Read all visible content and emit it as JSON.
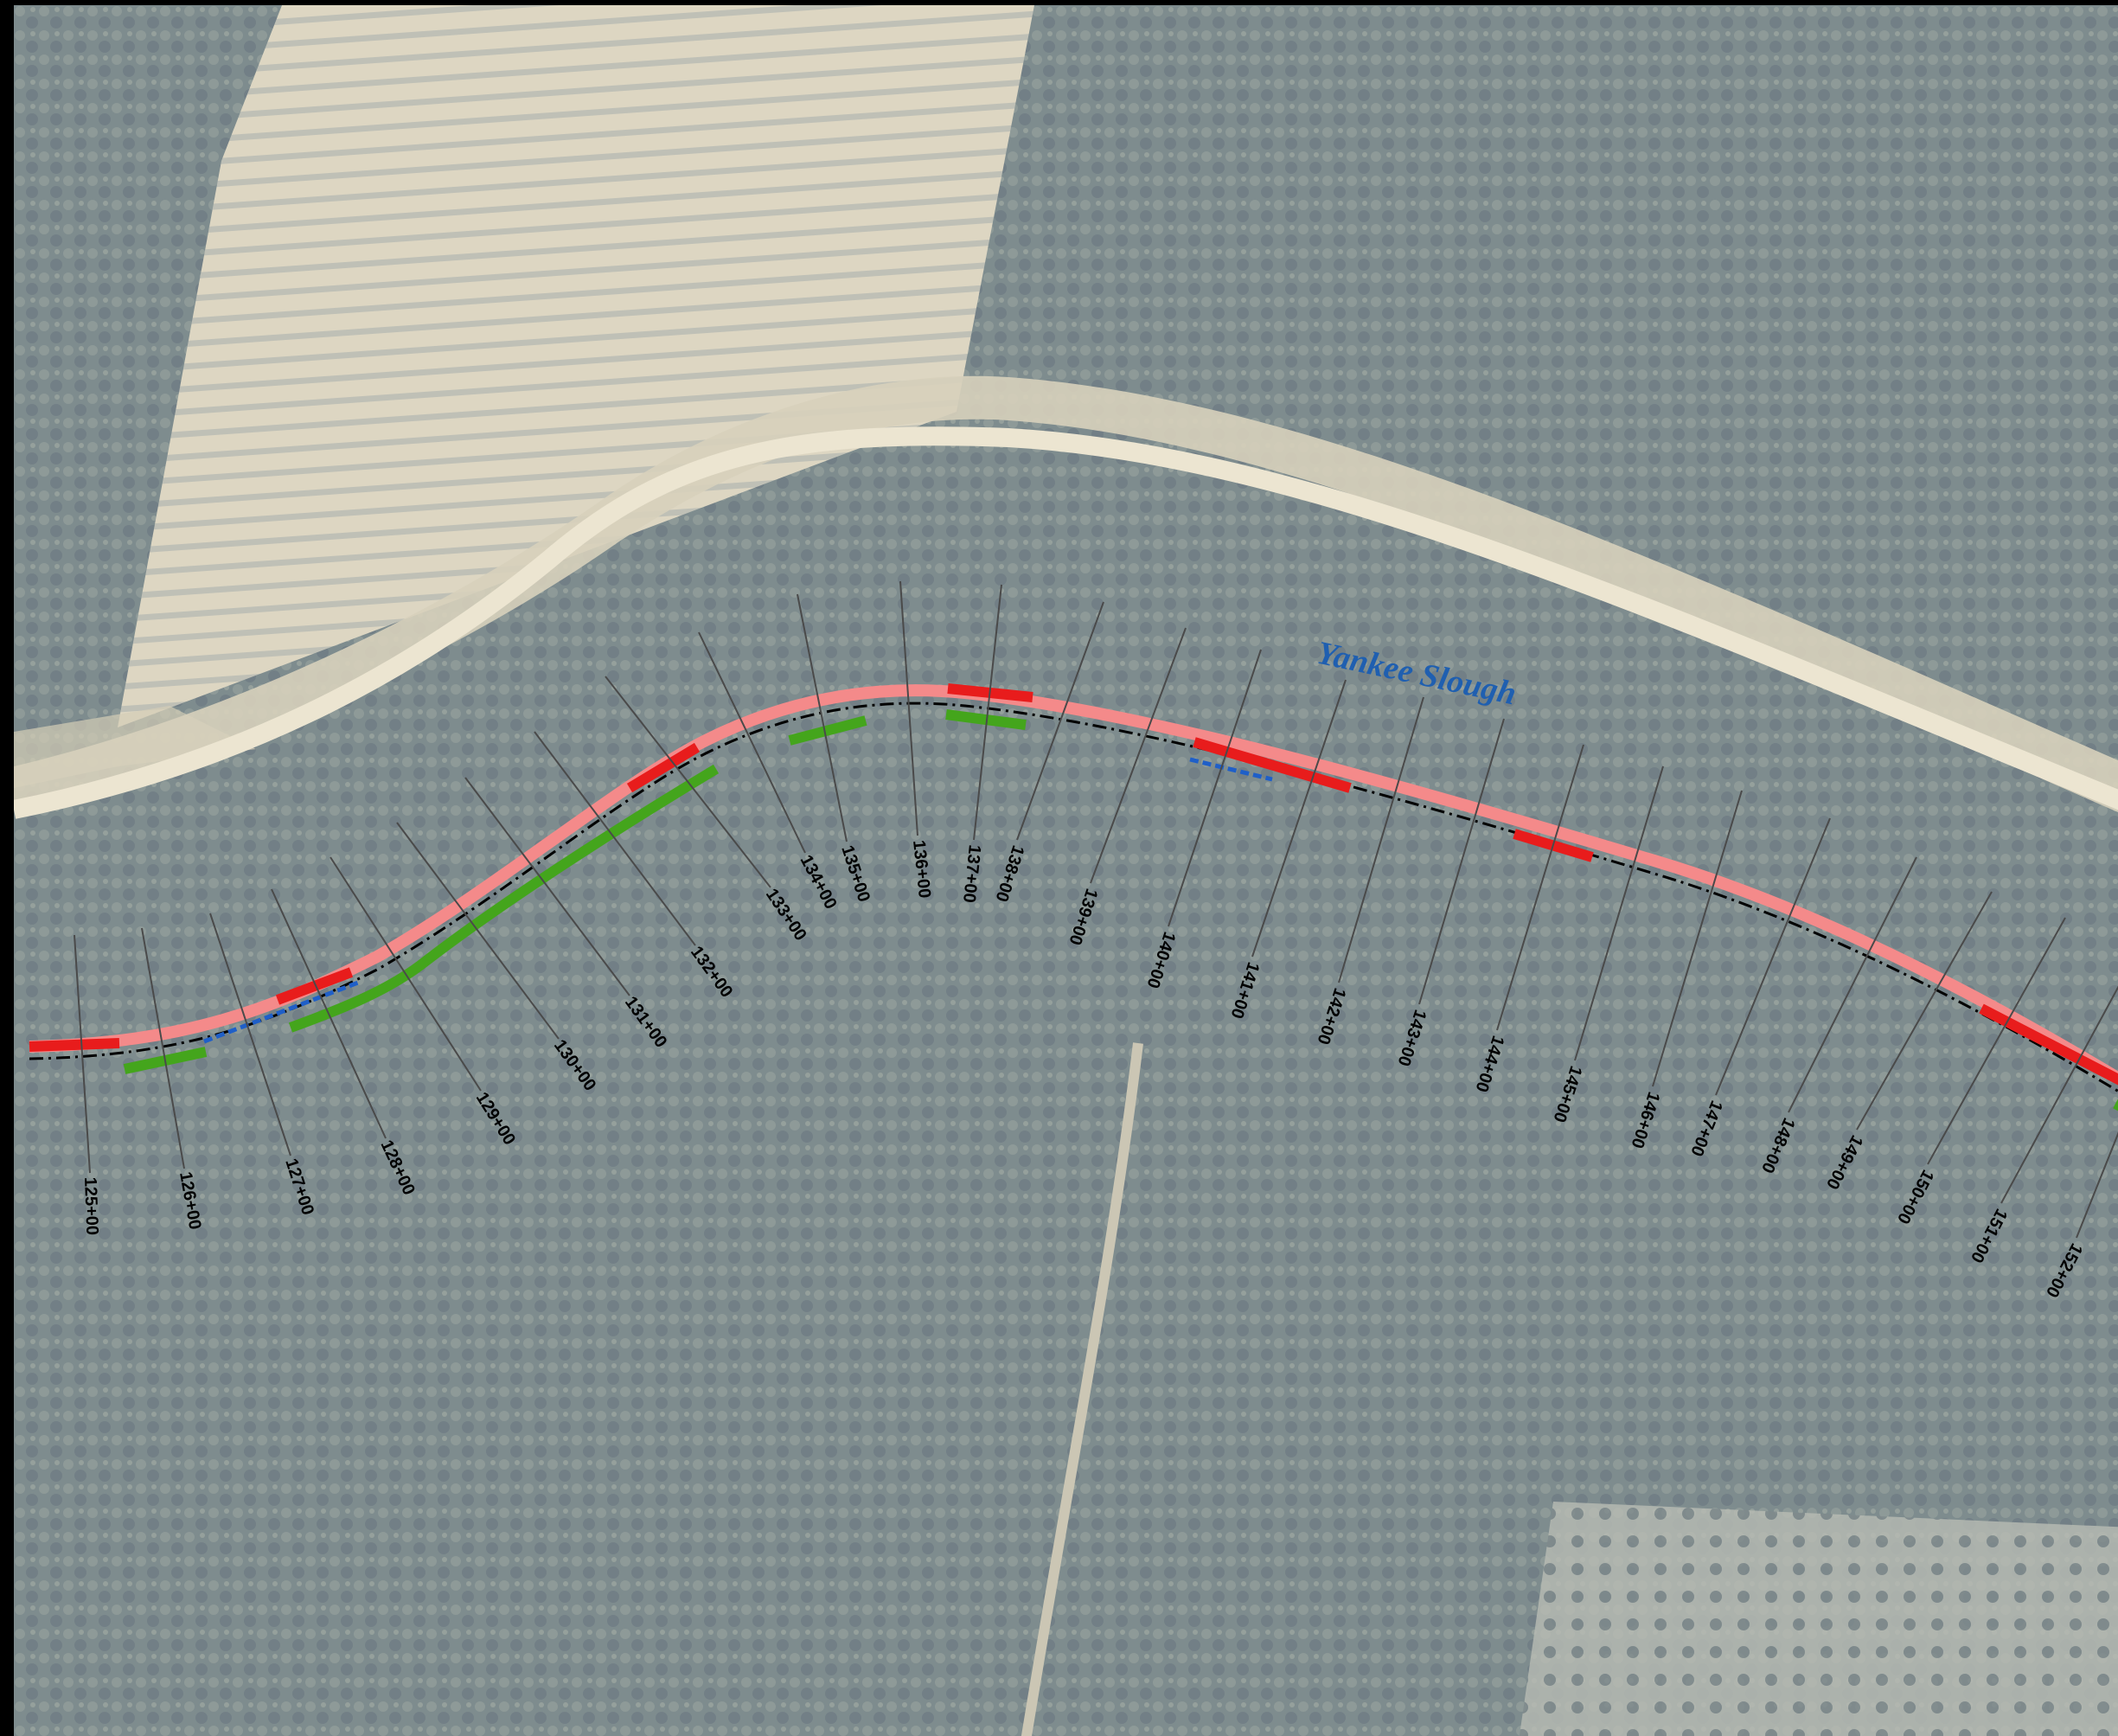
{
  "map": {
    "water_label": "Yankee Slough",
    "colors": {
      "levee_alignment": "#f48a8a",
      "highlight_red": "#e81c1c",
      "highlight_green": "#44a51c",
      "highlight_blue": "#1f5fc8",
      "centerline": "#000000",
      "station_leader": "#4a4a4a",
      "water_label": "#1f5fb0"
    },
    "stations": [
      {
        "label": "125+00",
        "id": "125"
      },
      {
        "label": "126+00",
        "id": "126"
      },
      {
        "label": "127+00",
        "id": "127"
      },
      {
        "label": "128+00",
        "id": "128"
      },
      {
        "label": "129+00",
        "id": "129"
      },
      {
        "label": "130+00",
        "id": "130"
      },
      {
        "label": "131+00",
        "id": "131"
      },
      {
        "label": "132+00",
        "id": "132"
      },
      {
        "label": "133+00",
        "id": "133"
      },
      {
        "label": "134+00",
        "id": "134"
      },
      {
        "label": "135+00",
        "id": "135"
      },
      {
        "label": "136+00",
        "id": "136"
      },
      {
        "label": "137+00",
        "id": "137"
      },
      {
        "label": "138+00",
        "id": "138"
      },
      {
        "label": "139+00",
        "id": "139"
      },
      {
        "label": "140+00",
        "id": "140"
      },
      {
        "label": "141+00",
        "id": "141"
      },
      {
        "label": "142+00",
        "id": "142"
      },
      {
        "label": "143+00",
        "id": "143"
      },
      {
        "label": "144+00",
        "id": "144"
      },
      {
        "label": "145+00",
        "id": "145"
      },
      {
        "label": "146+00",
        "id": "146"
      },
      {
        "label": "147+00",
        "id": "147"
      },
      {
        "label": "148+00",
        "id": "148"
      },
      {
        "label": "149+00",
        "id": "149"
      },
      {
        "label": "150+00",
        "id": "150"
      },
      {
        "label": "151+00",
        "id": "151"
      },
      {
        "label": "152+00",
        "id": "152"
      }
    ]
  }
}
